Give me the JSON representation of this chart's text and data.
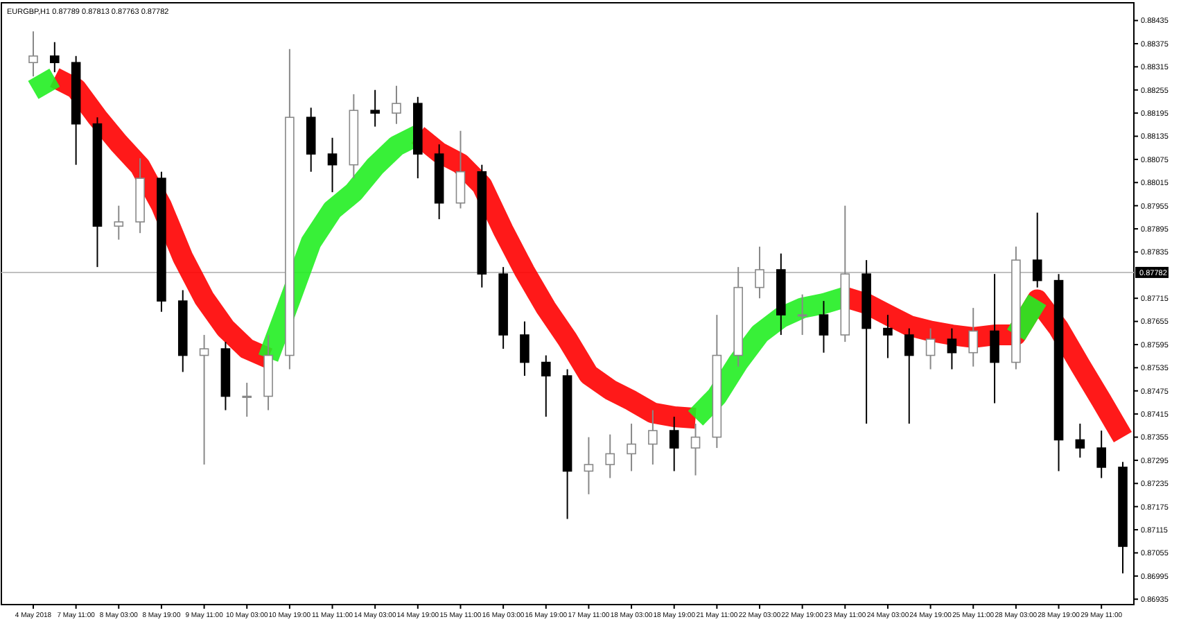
{
  "chart_data": {
    "type": "candlestick",
    "title": "EURGBP,H1 0.87789 0.87813 0.87763 0.87782",
    "categories": [
      "4 May 2018",
      null,
      "7 May 11:00",
      null,
      "8 May 03:00",
      null,
      "8 May 19:00",
      null,
      "9 May 11:00",
      null,
      "10 May 03:00",
      null,
      "10 May 19:00",
      null,
      "11 May 11:00",
      null,
      "14 May 03:00",
      null,
      "14 May 19:00",
      null,
      "15 May 11:00",
      null,
      "16 May 03:00",
      null,
      "16 May 19:00",
      null,
      "17 May 11:00",
      null,
      "18 May 03:00",
      null,
      "18 May 19:00",
      null,
      "21 May 11:00",
      null,
      "22 May 03:00",
      null,
      "22 May 19:00",
      null,
      "23 May 11:00",
      null,
      "24 May 03:00",
      null,
      "24 May 19:00",
      null,
      "25 May 11:00",
      null,
      "28 May 03:00",
      null,
      "28 May 19:00",
      null,
      "29 May 11:00",
      null
    ],
    "ohlc": [
      [
        0.88326,
        0.88407,
        0.8829,
        0.88343
      ],
      [
        0.88343,
        0.88379,
        0.88301,
        0.88326
      ],
      [
        0.88326,
        0.88343,
        0.88061,
        0.88167
      ],
      [
        0.88167,
        0.88184,
        0.87796,
        0.87902
      ],
      [
        0.87902,
        0.87955,
        0.87867,
        0.87913
      ],
      [
        0.87913,
        0.88078,
        0.87884,
        0.88026
      ],
      [
        0.88026,
        0.88043,
        0.8768,
        0.87708
      ],
      [
        0.87708,
        0.87736,
        0.87524,
        0.87567
      ],
      [
        0.87567,
        0.8762,
        0.87284,
        0.87584
      ],
      [
        0.87584,
        0.87602,
        0.87425,
        0.87461
      ],
      [
        0.87461,
        0.87496,
        0.87408,
        0.87461
      ],
      [
        0.87461,
        0.8762,
        0.87425,
        0.87567
      ],
      [
        0.87567,
        0.88361,
        0.87531,
        0.88184
      ],
      [
        0.88184,
        0.88209,
        0.88043,
        0.88089
      ],
      [
        0.88089,
        0.88131,
        0.8799,
        0.88061
      ],
      [
        0.88061,
        0.88244,
        0.88026,
        0.88202
      ],
      [
        0.88202,
        0.88255,
        0.8816,
        0.88195
      ],
      [
        0.88195,
        0.88266,
        0.88167,
        0.8822
      ],
      [
        0.8822,
        0.88237,
        0.88026,
        0.88089
      ],
      [
        0.88089,
        0.88114,
        0.8792,
        0.87962
      ],
      [
        0.87962,
        0.88149,
        0.87948,
        0.88043
      ],
      [
        0.88043,
        0.88061,
        0.87743,
        0.87778
      ],
      [
        0.87778,
        0.87796,
        0.87584,
        0.8762
      ],
      [
        0.8762,
        0.87655,
        0.87514,
        0.87549
      ],
      [
        0.87549,
        0.87567,
        0.87408,
        0.87514
      ],
      [
        0.87514,
        0.87531,
        0.87143,
        0.87267
      ],
      [
        0.87267,
        0.87355,
        0.87207,
        0.87284
      ],
      [
        0.87284,
        0.87362,
        0.87249,
        0.87312
      ],
      [
        0.87312,
        0.8739,
        0.87267,
        0.87337
      ],
      [
        0.87337,
        0.87425,
        0.87284,
        0.87372
      ],
      [
        0.87372,
        0.87408,
        0.87267,
        0.87327
      ],
      [
        0.87327,
        0.8739,
        0.87256,
        0.87355
      ],
      [
        0.87355,
        0.87672,
        0.87327,
        0.87567
      ],
      [
        0.87567,
        0.87796,
        0.87538,
        0.87743
      ],
      [
        0.87743,
        0.87849,
        0.87715,
        0.87789
      ],
      [
        0.87789,
        0.87831,
        0.8762,
        0.87672
      ],
      [
        0.87672,
        0.87725,
        0.8762,
        0.87672
      ],
      [
        0.87672,
        0.87708,
        0.87574,
        0.8762
      ],
      [
        0.8762,
        0.87955,
        0.87602,
        0.87778
      ],
      [
        0.87778,
        0.87814,
        0.8739,
        0.87637
      ],
      [
        0.87637,
        0.87672,
        0.8756,
        0.8762
      ],
      [
        0.8762,
        0.87637,
        0.8739,
        0.87567
      ],
      [
        0.87567,
        0.87637,
        0.87531,
        0.87609
      ],
      [
        0.87609,
        0.87637,
        0.87531,
        0.87574
      ],
      [
        0.87574,
        0.8769,
        0.87538,
        0.8763
      ],
      [
        0.8763,
        0.87778,
        0.87443,
        0.87549
      ],
      [
        0.87549,
        0.87849,
        0.87531,
        0.87814
      ],
      [
        0.87814,
        0.87937,
        0.87743,
        0.87761
      ],
      [
        0.87761,
        0.87778,
        0.87267,
        0.87348
      ],
      [
        0.87348,
        0.8739,
        0.87302,
        0.87327
      ],
      [
        0.87327,
        0.87372,
        0.87249,
        0.87277
      ],
      [
        0.87277,
        0.87291,
        0.87002,
        0.87072
      ]
    ],
    "series": [
      {
        "type": "line",
        "color": "#ff0000",
        "values": [
          null,
          0.88287,
          0.88259,
          0.88184,
          0.88117,
          0.88057,
          0.87955,
          0.87821,
          0.87715,
          0.87637,
          0.87584,
          0.8756,
          null,
          null,
          null,
          null,
          null,
          null,
          0.88138,
          0.88093,
          0.88064,
          0.88008,
          0.87891,
          0.87785,
          0.8769,
          0.87609,
          0.87517,
          0.87478,
          0.8745,
          0.87418,
          0.87408,
          0.87404,
          null,
          null,
          null,
          null,
          null,
          null,
          0.87718,
          0.87701,
          0.87672,
          0.87644,
          0.8763,
          0.8762,
          0.87613,
          0.8762,
          0.8762,
          0.87711,
          0.87637,
          0.87542,
          0.8745,
          0.87355
        ]
      },
      {
        "type": "line",
        "color": "#22ee22",
        "values": [
          0.88255,
          0.88287,
          null,
          null,
          null,
          null,
          null,
          null,
          null,
          null,
          null,
          0.8756,
          0.87708,
          0.8786,
          0.87944,
          0.8799,
          0.88057,
          0.8811,
          0.88138,
          null,
          null,
          null,
          null,
          null,
          null,
          null,
          null,
          null,
          null,
          null,
          null,
          0.87404,
          0.87461,
          0.87549,
          0.87623,
          0.87665,
          0.8769,
          0.87701,
          0.87718,
          null,
          null,
          null,
          null,
          null,
          null,
          null,
          0.8762,
          0.87711,
          null,
          null,
          null,
          null
        ]
      }
    ],
    "ylim": [
      0.86921,
      0.88481
    ],
    "yticks": [
      0.86935,
      0.86995,
      0.87055,
      0.87115,
      0.87175,
      0.87235,
      0.87295,
      0.87355,
      0.87415,
      0.87475,
      0.87535,
      0.87595,
      0.87655,
      0.87715,
      0.87835,
      0.87895,
      0.87955,
      0.88015,
      0.88075,
      0.88135,
      0.88195,
      0.88255,
      0.88315,
      0.88375,
      0.88435
    ],
    "ref_lines": [
      {
        "axis": "y",
        "value": 0.87782,
        "label": "0.87782"
      }
    ]
  }
}
